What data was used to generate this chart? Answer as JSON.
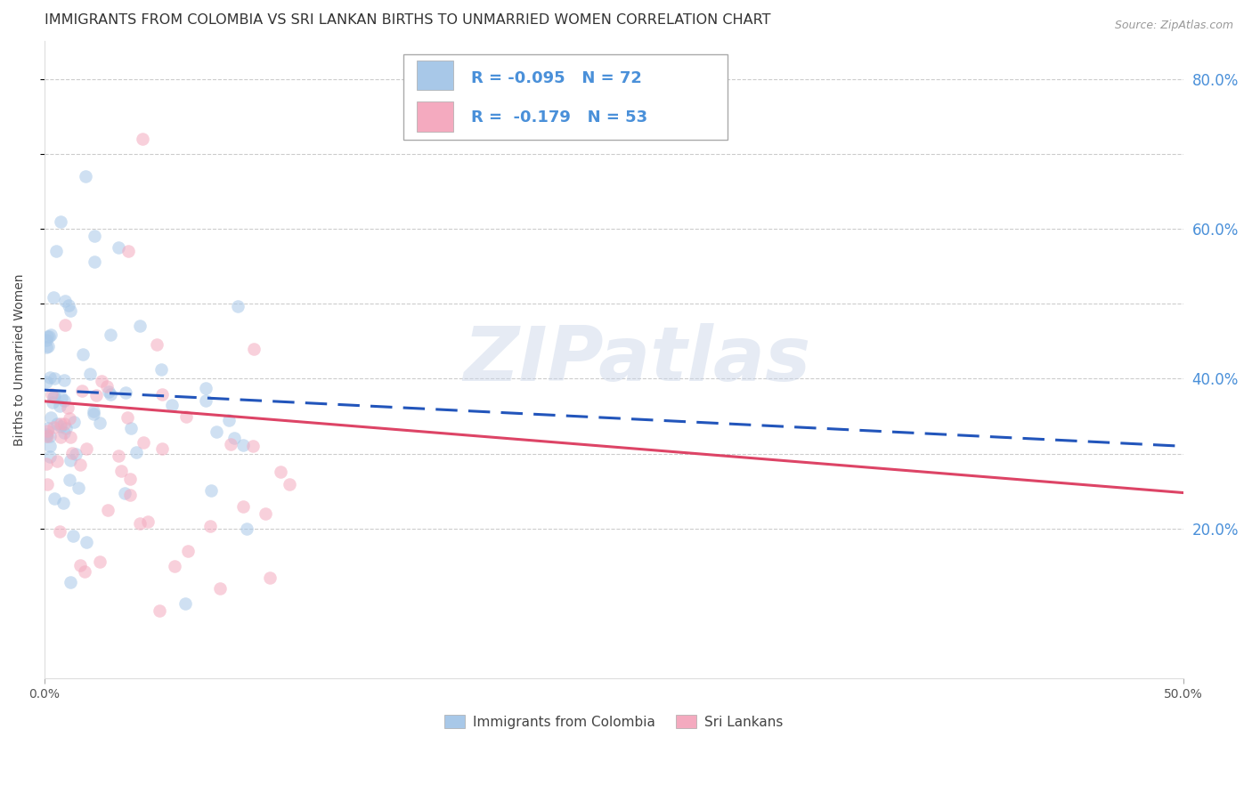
{
  "title": "IMMIGRANTS FROM COLOMBIA VS SRI LANKAN BIRTHS TO UNMARRIED WOMEN CORRELATION CHART",
  "source": "Source: ZipAtlas.com",
  "ylabel": "Births to Unmarried Women",
  "watermark": "ZIPatlas",
  "legend_r1": "R = -0.095",
  "legend_n1": "N = 72",
  "legend_r2": "R =  -0.179",
  "legend_n2": "N = 53",
  "legend_label1": "Immigrants from Colombia",
  "legend_label2": "Sri Lankans",
  "colombia_dot_color": "#a8c8e8",
  "srilanka_dot_color": "#f4aabf",
  "colombia_line_color": "#2255bb",
  "srilanka_line_color": "#dd4466",
  "grid_color": "#cccccc",
  "background_color": "#ffffff",
  "right_tick_color": "#4a90d9",
  "xlim": [
    0.0,
    0.5
  ],
  "ylim": [
    0.0,
    0.85
  ],
  "dot_size": 110,
  "dot_alpha": 0.55,
  "title_fontsize": 11.5,
  "axis_label_fontsize": 10,
  "tick_fontsize": 10,
  "legend_fontsize": 13,
  "source_fontsize": 9,
  "col_seed": 42,
  "sri_seed": 77
}
